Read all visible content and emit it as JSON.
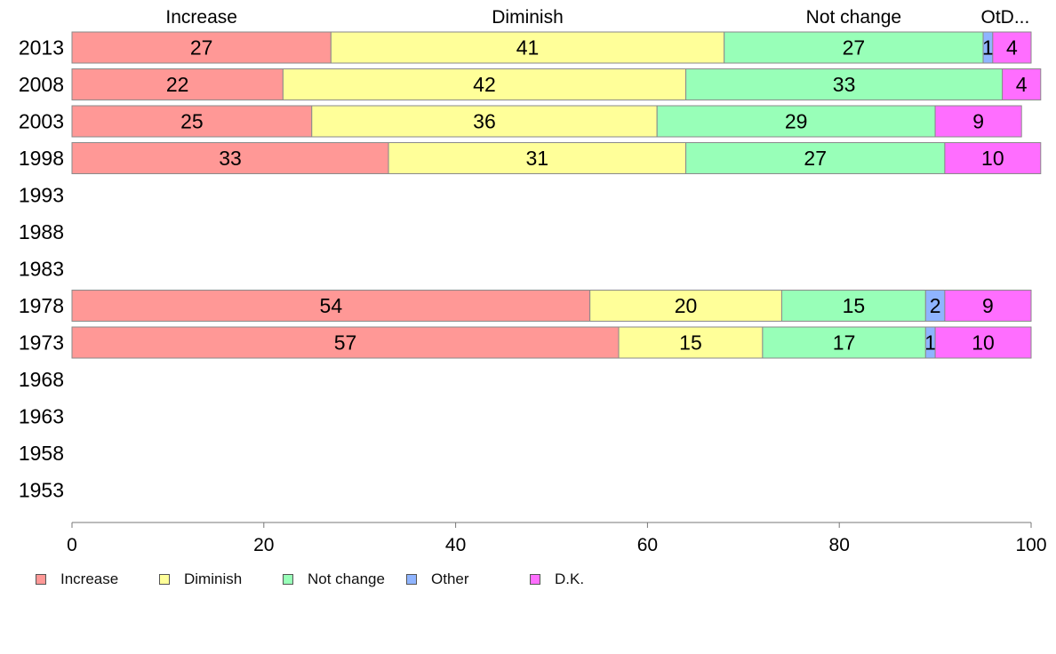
{
  "chart_data": {
    "type": "bar",
    "orientation": "horizontal",
    "stacked": true,
    "title": "",
    "xlabel": "",
    "ylabel": "",
    "xlim": [
      0,
      100
    ],
    "x_ticks": [
      0,
      20,
      40,
      60,
      80,
      100
    ],
    "grid": false,
    "legend_position": "bottom",
    "column_headers": [
      "Increase",
      "Diminish",
      "Not change",
      "OtD..."
    ],
    "categories": [
      "2013",
      "2008",
      "2003",
      "1998",
      "1993",
      "1988",
      "1983",
      "1978",
      "1973",
      "1968",
      "1963",
      "1958",
      "1953"
    ],
    "series": [
      {
        "name": "Increase",
        "color": "#FF9896",
        "values": [
          27,
          22,
          25,
          33,
          null,
          null,
          null,
          54,
          57,
          null,
          null,
          null,
          null
        ]
      },
      {
        "name": "Diminish",
        "color": "#FFFF99",
        "values": [
          41,
          42,
          36,
          31,
          null,
          null,
          null,
          20,
          15,
          null,
          null,
          null,
          null
        ]
      },
      {
        "name": "Not change",
        "color": "#98FFB8",
        "values": [
          27,
          33,
          29,
          27,
          null,
          null,
          null,
          15,
          17,
          null,
          null,
          null,
          null
        ]
      },
      {
        "name": "Other",
        "color": "#8FB4FF",
        "values": [
          1,
          0,
          0,
          0,
          null,
          null,
          null,
          2,
          1,
          null,
          null,
          null,
          null
        ]
      },
      {
        "name": "D.K.",
        "color": "#FF6EFF",
        "values": [
          4,
          4,
          9,
          10,
          null,
          null,
          null,
          9,
          10,
          null,
          null,
          null,
          null
        ]
      }
    ]
  }
}
